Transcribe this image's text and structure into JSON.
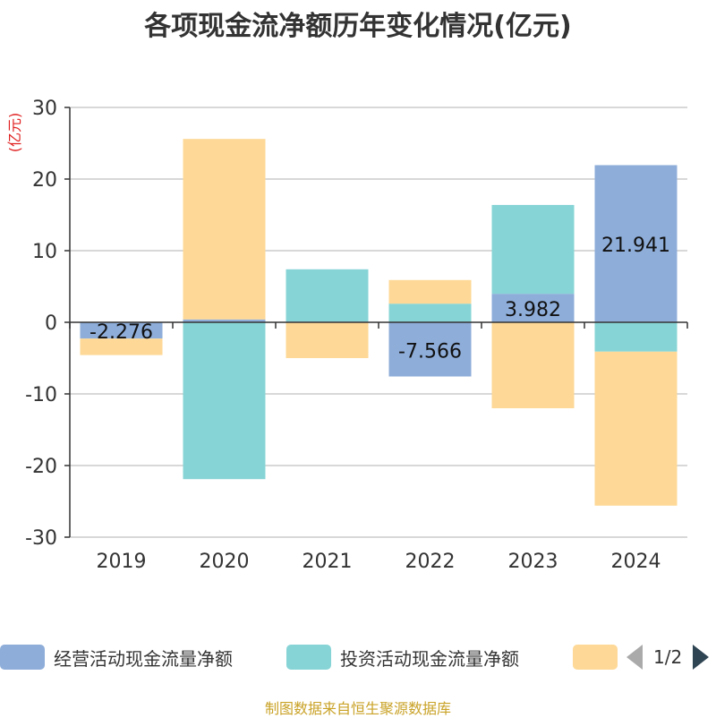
{
  "chart_data": {
    "type": "bar",
    "stacked": true,
    "title": "各项现金流净额历年变化情况(亿元)",
    "ylabel": "(亿元)",
    "xlabel": "",
    "ylim": [
      -30,
      30
    ],
    "yticks": [
      30,
      20,
      10,
      0,
      -10,
      -20,
      -30
    ],
    "grid": true,
    "legend_position": "bottom",
    "categories": [
      "2019",
      "2020",
      "2021",
      "2022",
      "2023",
      "2024"
    ],
    "series": [
      {
        "name": "经营活动现金流量净额",
        "color": "#8eadd9",
        "values": [
          -2.276,
          0.4,
          0.1,
          -7.566,
          3.982,
          21.941
        ],
        "labels": [
          "-2.276",
          "",
          "",
          "-7.566",
          "3.982",
          "21.941"
        ]
      },
      {
        "name": "投资活动现金流量净额",
        "color": "#87d4d6",
        "values": [
          0,
          -21.9,
          7.3,
          2.6,
          12.4,
          -4.1
        ],
        "labels": [
          "",
          "",
          "",
          "",
          "",
          ""
        ]
      },
      {
        "name": "",
        "color": "#fed896",
        "values": [
          -2.3,
          25.2,
          -5.0,
          3.3,
          -12.0,
          -21.5
        ],
        "labels": [
          "",
          "",
          "",
          "",
          "",
          ""
        ]
      }
    ]
  },
  "legend": {
    "page_indicator": "1/2"
  },
  "source_note": "制图数据来自恒生聚源数据库",
  "colors": {
    "axis": "#333333",
    "grid": "#cccccc",
    "ylabel": "#e02020",
    "title": "#333333"
  }
}
